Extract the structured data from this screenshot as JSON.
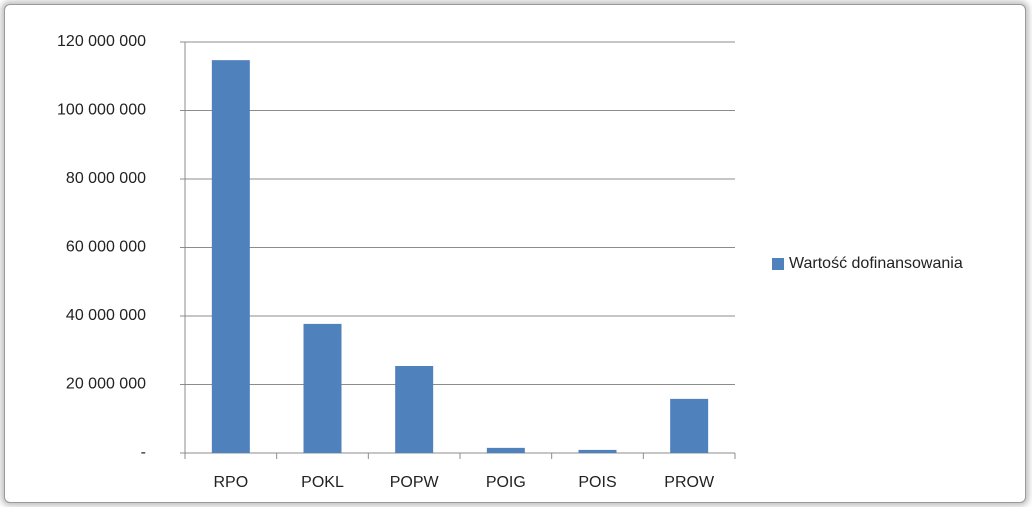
{
  "chart_data": {
    "type": "bar",
    "categories": [
      "RPO",
      "POKL",
      "POPW",
      "POIG",
      "POIS",
      "PROW"
    ],
    "series": [
      {
        "name": "Wartość dofinansowania",
        "color": "#4f81bd",
        "values": [
          114700000,
          37700000,
          25400000,
          1500000,
          900000,
          15800000
        ]
      }
    ],
    "ylim": [
      0,
      120000000
    ],
    "yticks": [
      {
        "value": 0,
        "label": "-"
      },
      {
        "value": 20000000,
        "label": "20 000 000"
      },
      {
        "value": 40000000,
        "label": "40 000 000"
      },
      {
        "value": 60000000,
        "label": "60 000 000"
      },
      {
        "value": 80000000,
        "label": "80 000 000"
      },
      {
        "value": 100000000,
        "label": "100 000 000"
      },
      {
        "value": 120000000,
        "label": "120 000 000"
      }
    ],
    "grid": true,
    "legend": "right"
  }
}
